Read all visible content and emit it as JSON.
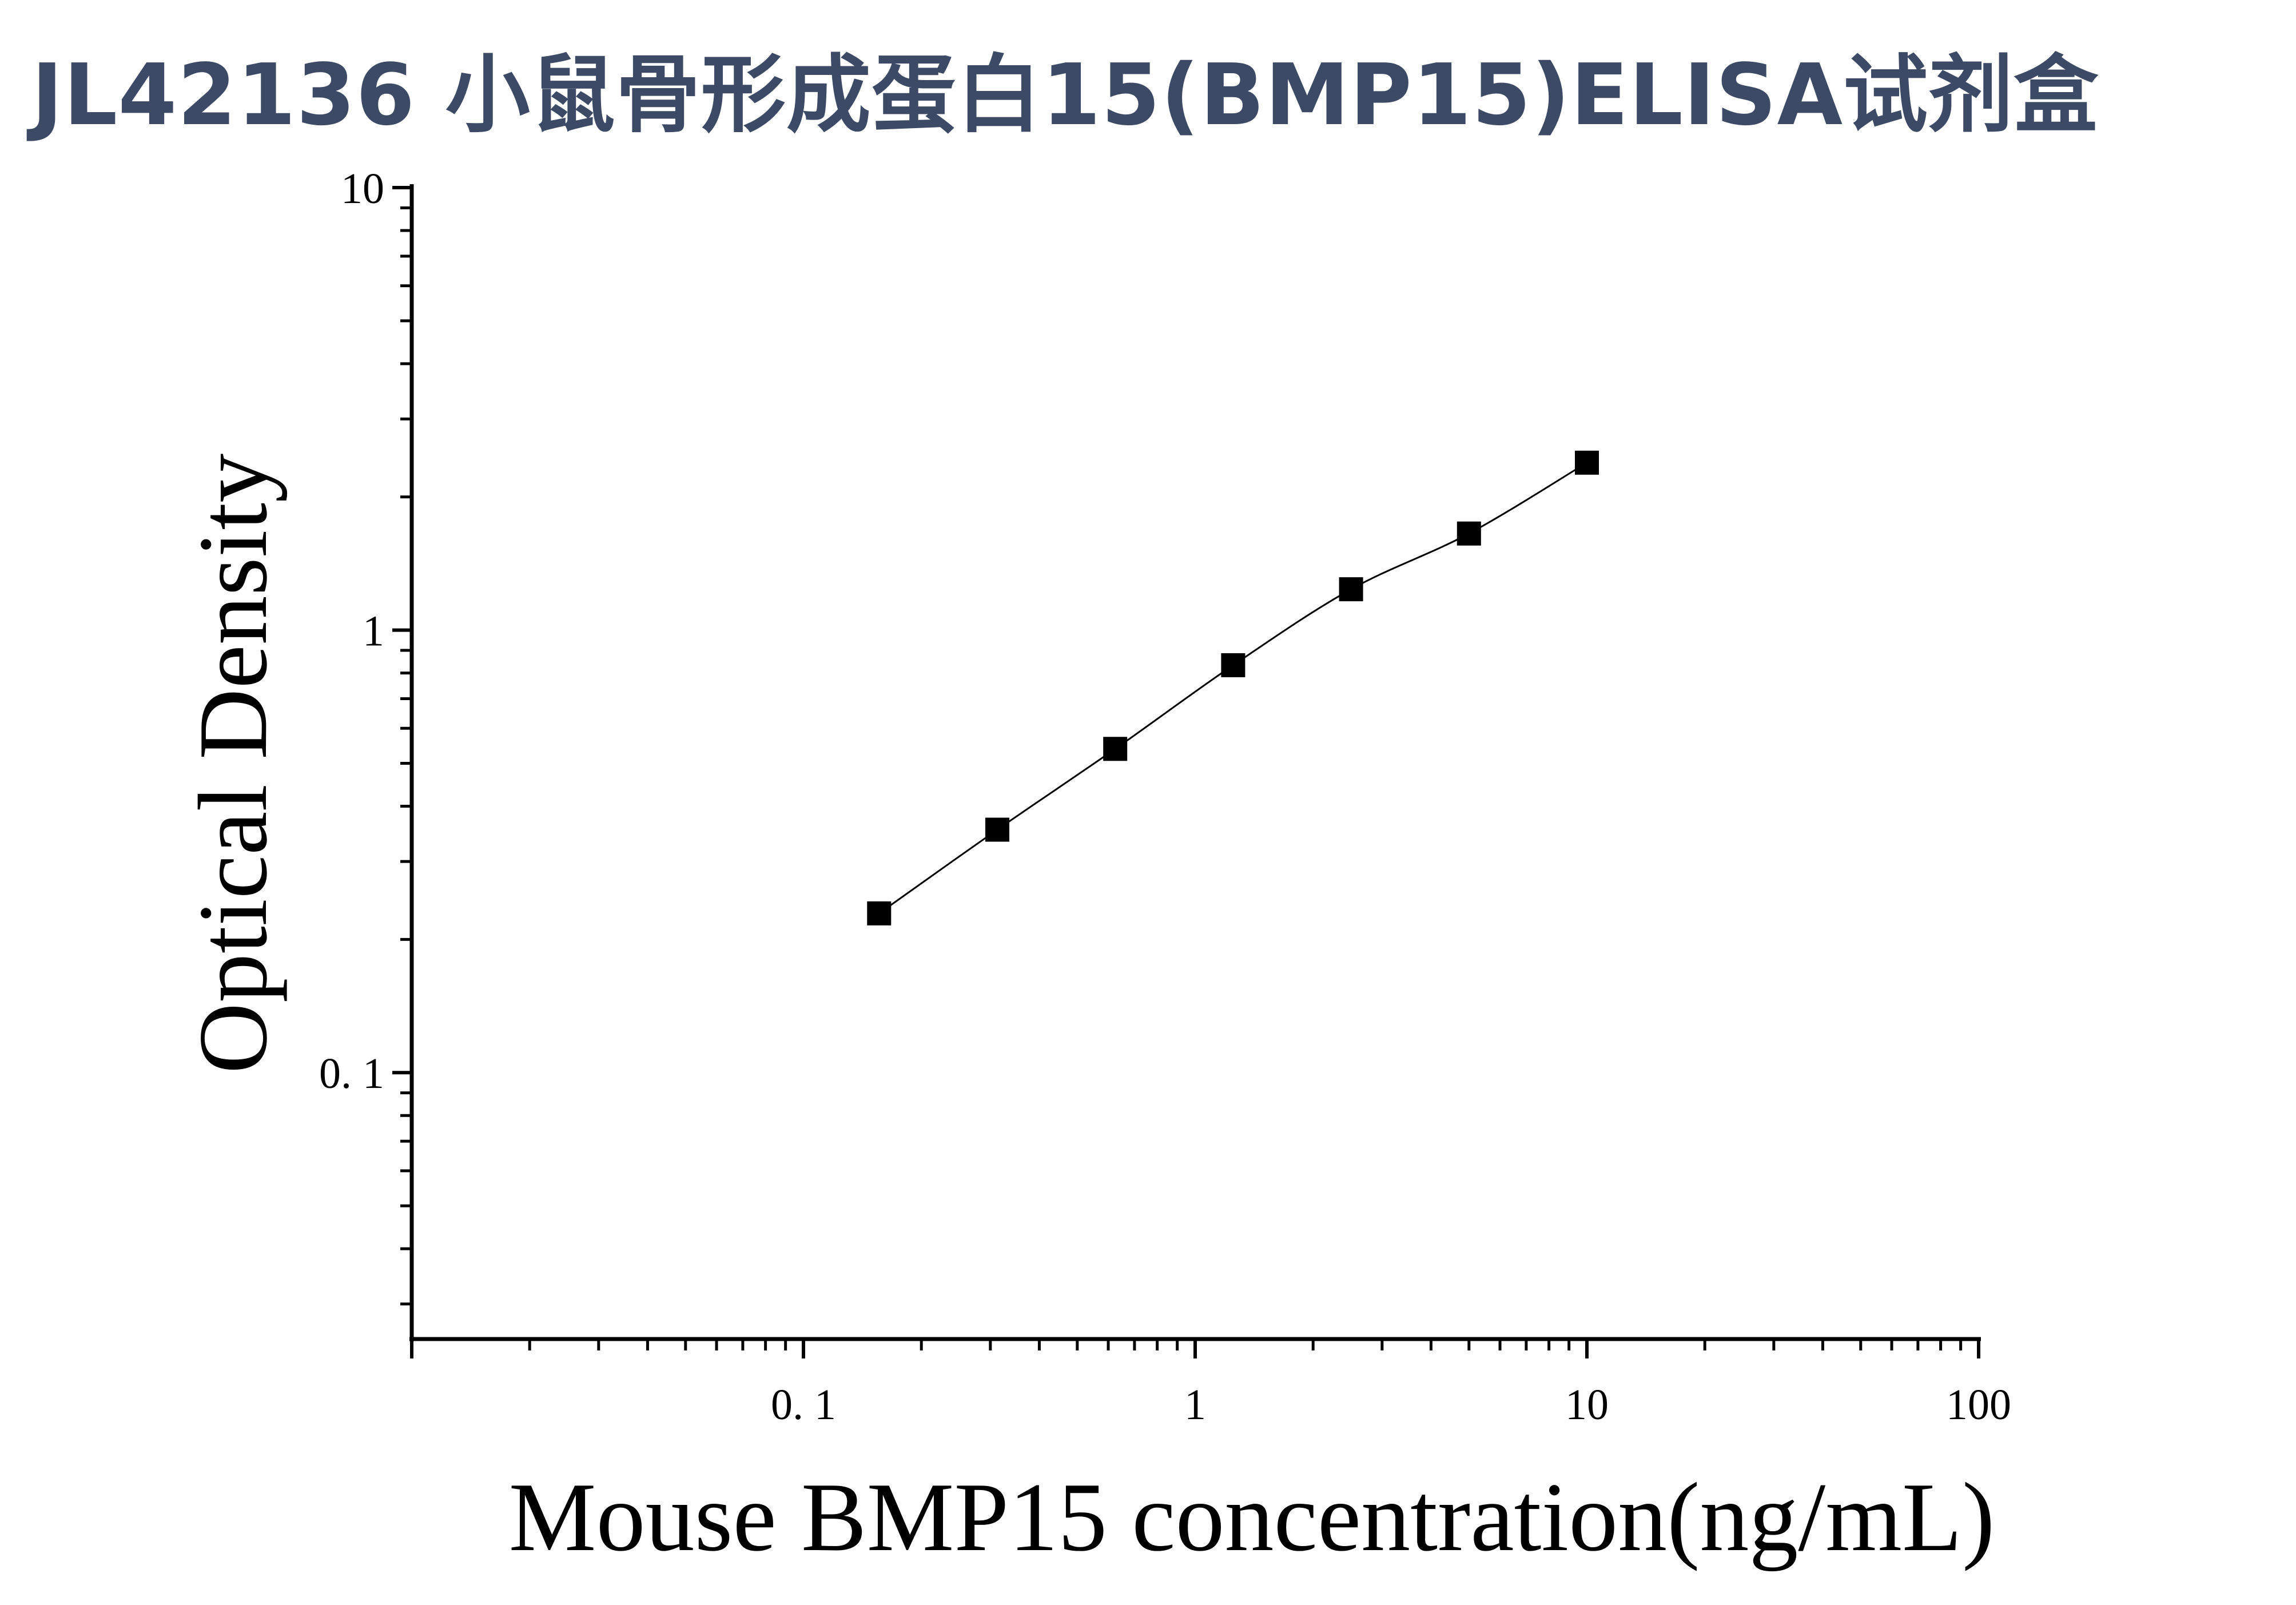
{
  "chart_data": {
    "type": "scatter",
    "title": "JL42136 小鼠骨形成蛋白15(BMP15)ELISA试剂盒",
    "xlabel": "Mouse BMP15 concentration(ng/mL)",
    "ylabel": "Optical Density",
    "x_scale": "log",
    "y_scale": "log",
    "xlim": [
      0.01,
      100
    ],
    "ylim": [
      0.025,
      10
    ],
    "x_ticks": [
      {
        "value": 0.1,
        "label": "0. 1"
      },
      {
        "value": 1,
        "label": "1"
      },
      {
        "value": 10,
        "label": "10"
      },
      {
        "value": 100,
        "label": "100"
      }
    ],
    "y_ticks": [
      {
        "value": 0.1,
        "label": "0. 1"
      },
      {
        "value": 1,
        "label": "1"
      },
      {
        "value": 10,
        "label": "10"
      }
    ],
    "grid": false,
    "marker": "square",
    "marker_color": "#000000",
    "line_color": "#000000",
    "title_color": "#3c4a66",
    "series": [
      {
        "x": [
          0.156,
          0.3125,
          0.625,
          1.25,
          2.5,
          5,
          10
        ],
        "y": [
          0.229,
          0.354,
          0.539,
          0.833,
          1.237,
          1.653,
          2.39
        ]
      }
    ]
  }
}
